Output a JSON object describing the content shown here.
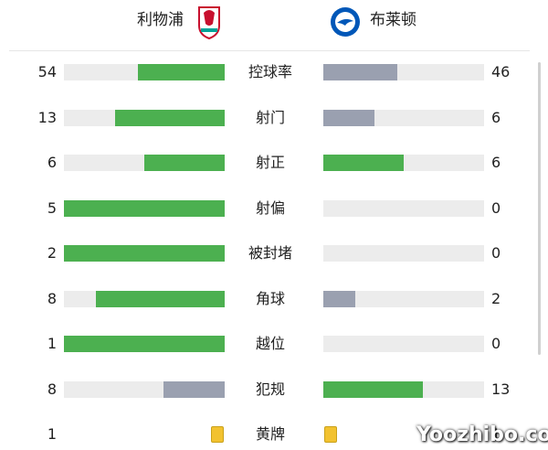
{
  "header": {
    "home": "利物浦",
    "away": "布莱顿"
  },
  "stats": [
    {
      "label": "控球率",
      "home": 54,
      "away": 46
    },
    {
      "label": "射门",
      "home": 13,
      "away": 6
    },
    {
      "label": "射正",
      "home": 6,
      "away": 6
    },
    {
      "label": "射偏",
      "home": 5,
      "away": 0
    },
    {
      "label": "被封堵",
      "home": 2,
      "away": 0
    },
    {
      "label": "角球",
      "home": 8,
      "away": 2
    },
    {
      "label": "越位",
      "home": 1,
      "away": 0
    },
    {
      "label": "犯规",
      "home": 8,
      "away": 13
    }
  ],
  "yellow_cards": {
    "label": "黄牌",
    "home": 1,
    "away": 1
  },
  "watermark": "Yoozhibo.com"
}
